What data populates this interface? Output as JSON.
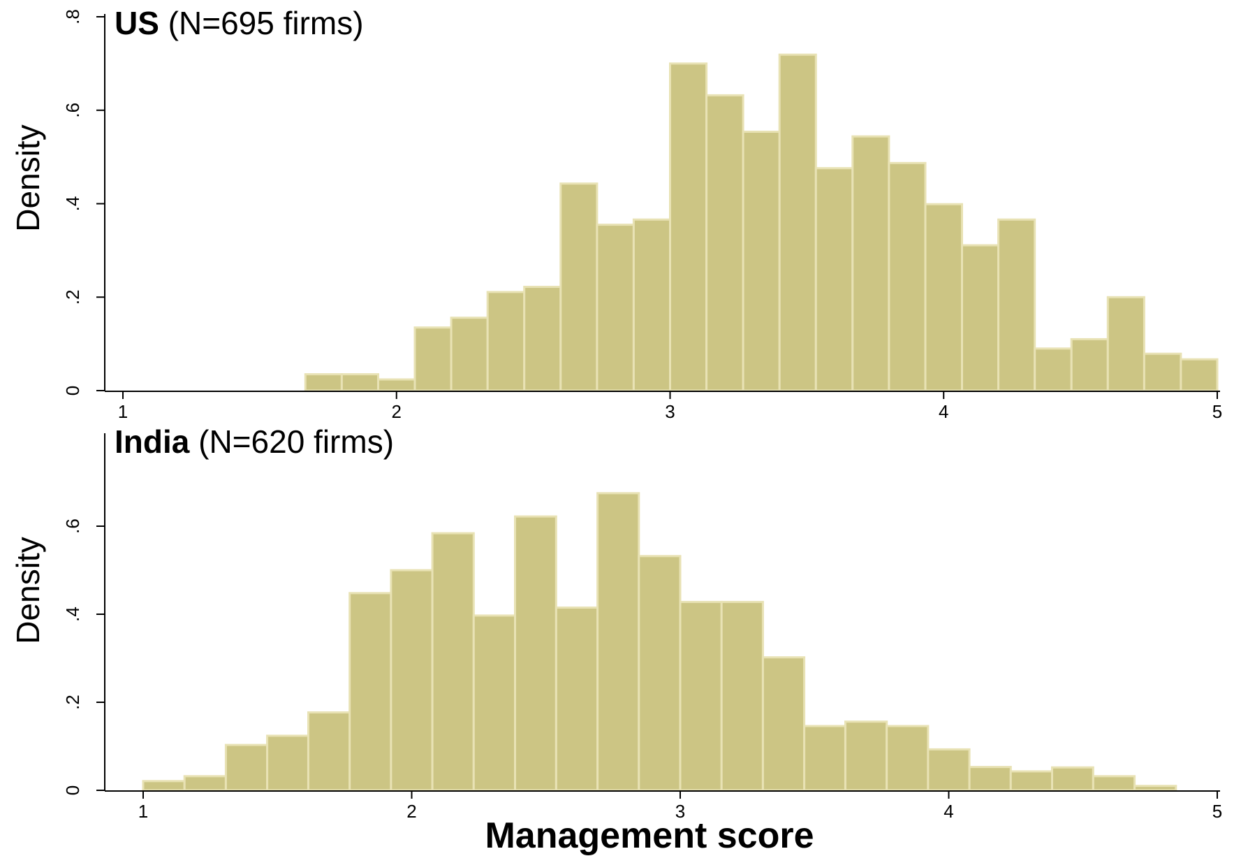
{
  "chart_data": [
    {
      "type": "bar",
      "title_bold": "US",
      "title_rest": " (N=695 firms)",
      "ylabel": "Density",
      "xlabel": "",
      "xlim": [
        1,
        5
      ],
      "ylim": [
        0,
        0.8
      ],
      "x_ticks": [
        "1",
        "2",
        "3",
        "4",
        "5"
      ],
      "x_tick_values": [
        1,
        2,
        3,
        4,
        5
      ],
      "y_ticks": [
        "0",
        ".2",
        ".4",
        ".6",
        ".8"
      ],
      "y_tick_values": [
        0,
        0.2,
        0.4,
        0.6,
        0.8
      ],
      "bar_color": "#ccc584",
      "bar_edge_color": "#e8e2b4",
      "bins": [
        {
          "x0": 1.667,
          "x1": 1.8,
          "value": 0.035
        },
        {
          "x0": 1.8,
          "x1": 1.933,
          "value": 0.035
        },
        {
          "x0": 1.933,
          "x1": 2.067,
          "value": 0.024
        },
        {
          "x0": 2.067,
          "x1": 2.2,
          "value": 0.135
        },
        {
          "x0": 2.2,
          "x1": 2.333,
          "value": 0.156
        },
        {
          "x0": 2.333,
          "x1": 2.467,
          "value": 0.211
        },
        {
          "x0": 2.467,
          "x1": 2.6,
          "value": 0.222
        },
        {
          "x0": 2.6,
          "x1": 2.733,
          "value": 0.443
        },
        {
          "x0": 2.733,
          "x1": 2.867,
          "value": 0.355
        },
        {
          "x0": 2.867,
          "x1": 3.0,
          "value": 0.366
        },
        {
          "x0": 3.0,
          "x1": 3.133,
          "value": 0.7
        },
        {
          "x0": 3.133,
          "x1": 3.267,
          "value": 0.632
        },
        {
          "x0": 3.267,
          "x1": 3.4,
          "value": 0.554
        },
        {
          "x0": 3.4,
          "x1": 3.533,
          "value": 0.719
        },
        {
          "x0": 3.533,
          "x1": 3.667,
          "value": 0.476
        },
        {
          "x0": 3.667,
          "x1": 3.8,
          "value": 0.544
        },
        {
          "x0": 3.8,
          "x1": 3.933,
          "value": 0.487
        },
        {
          "x0": 3.933,
          "x1": 4.067,
          "value": 0.399
        },
        {
          "x0": 4.067,
          "x1": 4.2,
          "value": 0.311
        },
        {
          "x0": 4.2,
          "x1": 4.333,
          "value": 0.366
        },
        {
          "x0": 4.333,
          "x1": 4.467,
          "value": 0.09
        },
        {
          "x0": 4.467,
          "x1": 4.6,
          "value": 0.11
        },
        {
          "x0": 4.6,
          "x1": 4.733,
          "value": 0.2
        },
        {
          "x0": 4.733,
          "x1": 4.867,
          "value": 0.079
        },
        {
          "x0": 4.867,
          "x1": 5.0,
          "value": 0.067
        }
      ]
    },
    {
      "type": "bar",
      "title_bold": "India",
      "title_rest": " (N=620 firms)",
      "ylabel": "Density",
      "xlabel": "Management score",
      "xlim": [
        1,
        5
      ],
      "ylim": [
        0,
        0.8
      ],
      "x_ticks": [
        "1",
        "2",
        "3",
        "4",
        "5"
      ],
      "x_tick_values": [
        1,
        2,
        3,
        4,
        5
      ],
      "y_ticks": [
        "0",
        ".2",
        ".4",
        ".6"
      ],
      "y_tick_values": [
        0,
        0.2,
        0.4,
        0.6
      ],
      "bar_color": "#ccc584",
      "bar_edge_color": "#e8e2b4",
      "bins": [
        {
          "x0": 1.0,
          "x1": 1.154,
          "value": 0.021
        },
        {
          "x0": 1.154,
          "x1": 1.308,
          "value": 0.032
        },
        {
          "x0": 1.308,
          "x1": 1.462,
          "value": 0.103
        },
        {
          "x0": 1.462,
          "x1": 1.615,
          "value": 0.124
        },
        {
          "x0": 1.615,
          "x1": 1.769,
          "value": 0.177
        },
        {
          "x0": 1.769,
          "x1": 1.923,
          "value": 0.448
        },
        {
          "x0": 1.923,
          "x1": 2.077,
          "value": 0.5
        },
        {
          "x0": 2.077,
          "x1": 2.231,
          "value": 0.584
        },
        {
          "x0": 2.231,
          "x1": 2.385,
          "value": 0.397
        },
        {
          "x0": 2.385,
          "x1": 2.538,
          "value": 0.622
        },
        {
          "x0": 2.538,
          "x1": 2.692,
          "value": 0.415
        },
        {
          "x0": 2.692,
          "x1": 2.846,
          "value": 0.675
        },
        {
          "x0": 2.846,
          "x1": 3.0,
          "value": 0.532
        },
        {
          "x0": 3.0,
          "x1": 3.154,
          "value": 0.428
        },
        {
          "x0": 3.154,
          "x1": 3.308,
          "value": 0.428
        },
        {
          "x0": 3.308,
          "x1": 3.462,
          "value": 0.302
        },
        {
          "x0": 3.462,
          "x1": 3.615,
          "value": 0.146
        },
        {
          "x0": 3.615,
          "x1": 3.769,
          "value": 0.156
        },
        {
          "x0": 3.769,
          "x1": 3.923,
          "value": 0.146
        },
        {
          "x0": 3.923,
          "x1": 4.077,
          "value": 0.093
        },
        {
          "x0": 4.077,
          "x1": 4.231,
          "value": 0.053
        },
        {
          "x0": 4.231,
          "x1": 4.385,
          "value": 0.043
        },
        {
          "x0": 4.385,
          "x1": 4.538,
          "value": 0.052
        },
        {
          "x0": 4.538,
          "x1": 4.692,
          "value": 0.032
        },
        {
          "x0": 4.692,
          "x1": 4.846,
          "value": 0.01
        }
      ]
    }
  ]
}
